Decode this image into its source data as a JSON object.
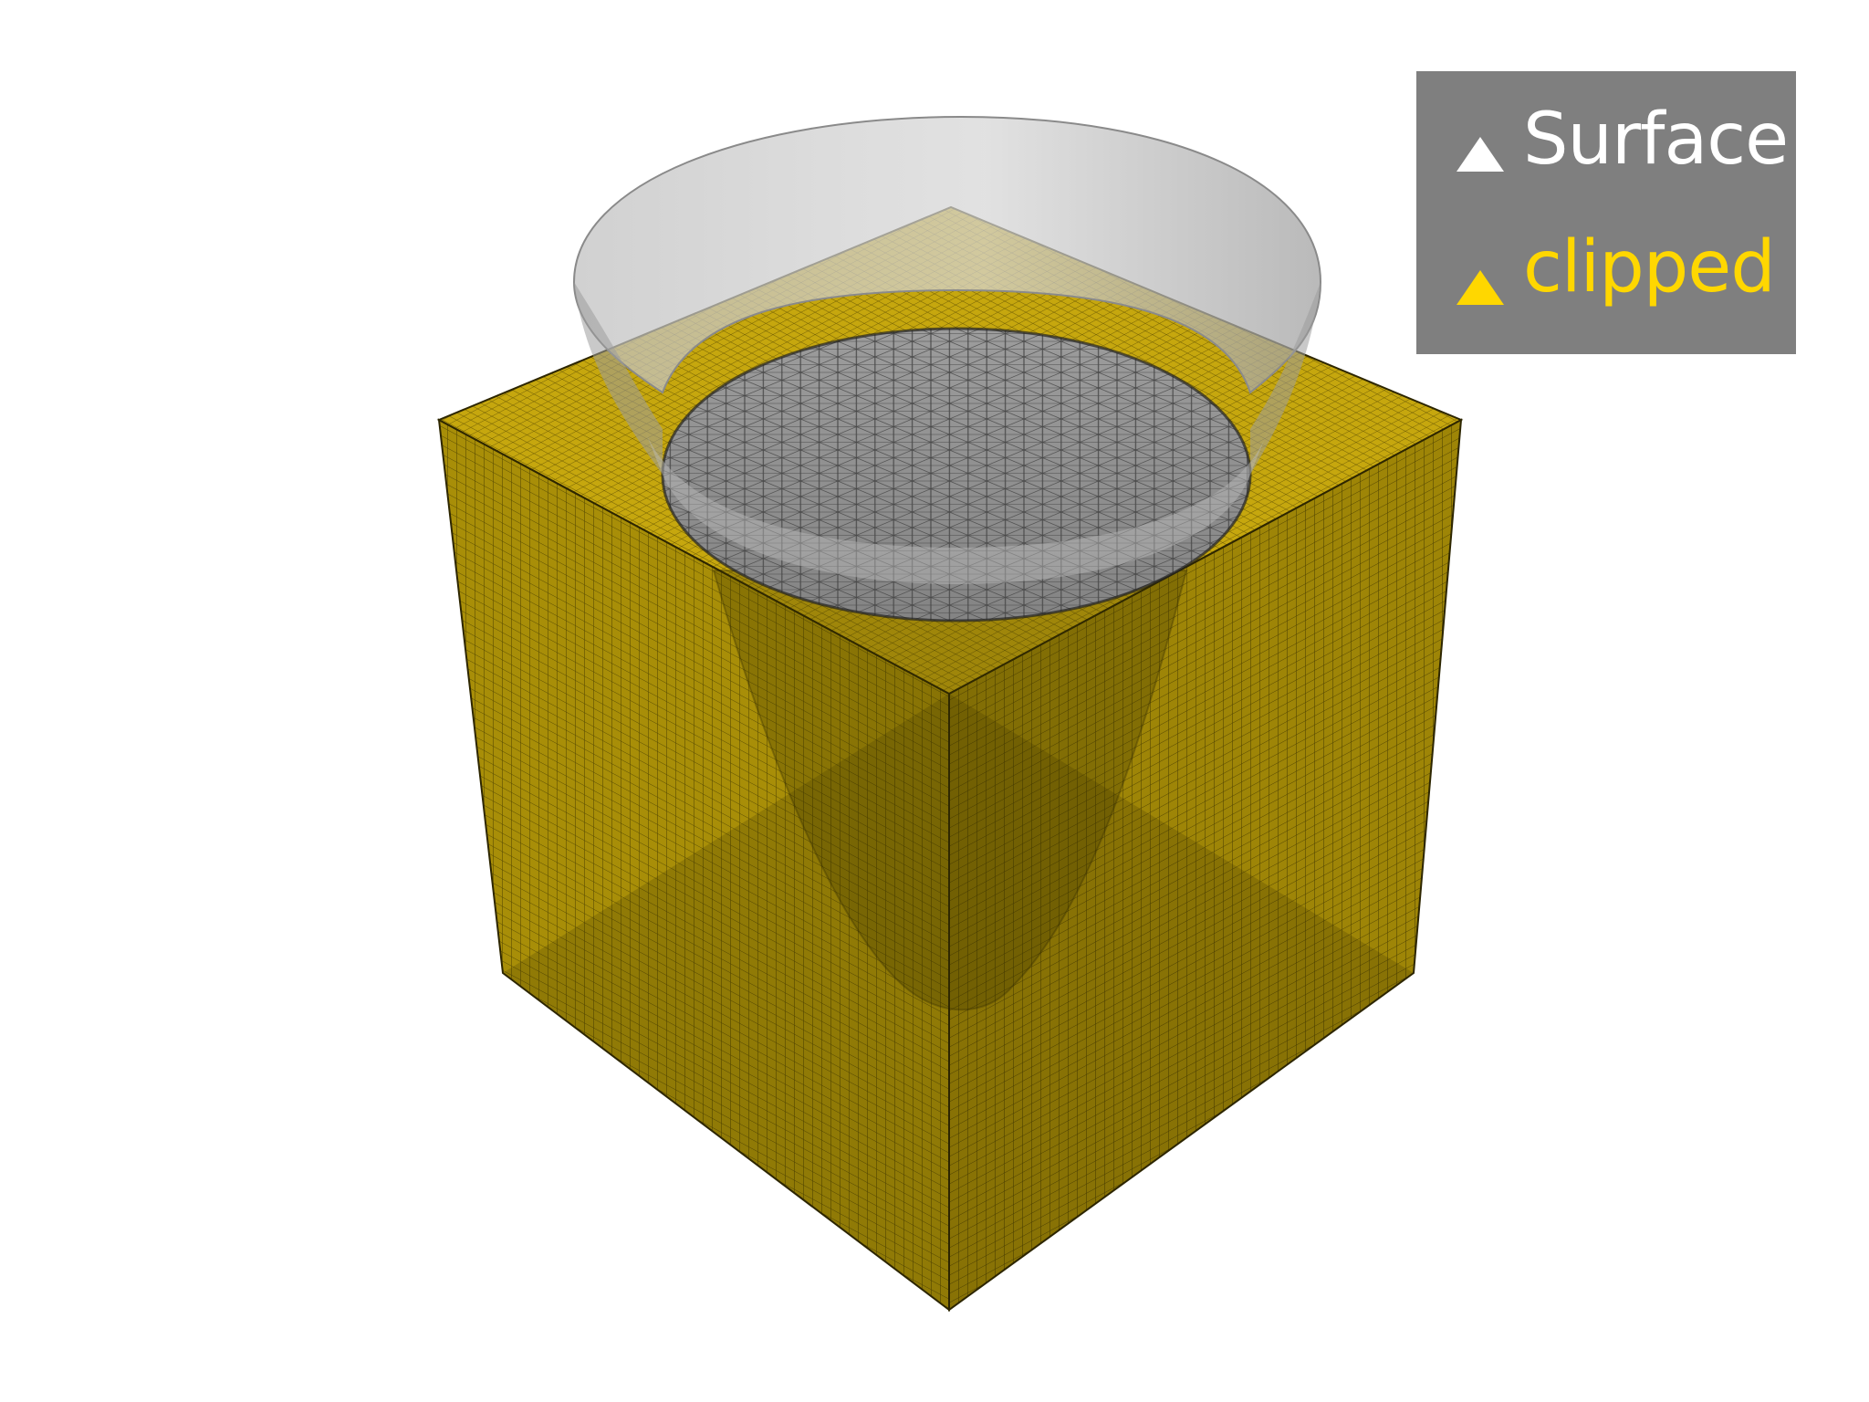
{
  "colors": {
    "background": "#ffffff",
    "clipped_mesh": "#c9a90a",
    "surface_mesh": "#b4b4b4",
    "legend_background": "#7f7f7f",
    "surface_legend": "#ffffff",
    "clipped_legend": "#ffd700"
  },
  "legend": {
    "entries": [
      {
        "label": "Surface",
        "color": "#ffffff",
        "icon": "triangle-icon"
      },
      {
        "label": "clipped",
        "color": "#ffd700",
        "icon": "triangle-icon"
      }
    ]
  },
  "objects": [
    {
      "name": "clipped",
      "kind": "hexahedral cube mesh",
      "edges_visible": true
    },
    {
      "name": "Surface",
      "kind": "cone surface mesh",
      "opacity": "semi-transparent",
      "edges_visible": true
    }
  ]
}
